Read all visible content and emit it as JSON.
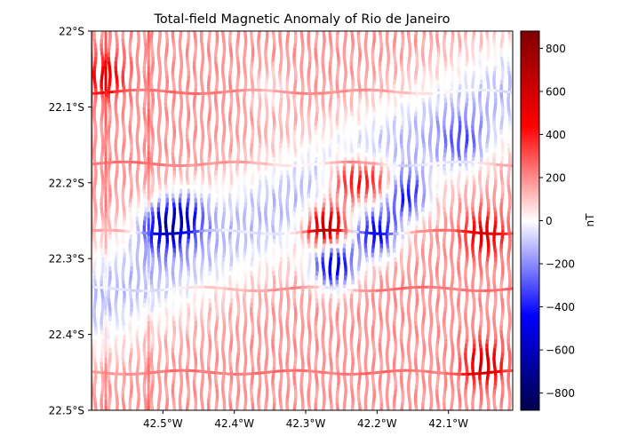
{
  "chart_data": {
    "type": "heatmap",
    "title": "Total-field Magnetic Anomaly of Rio de Janeiro",
    "xlabel": "",
    "ylabel": "",
    "xlim": [
      -42.6,
      -42.01
    ],
    "ylim": [
      -22.5,
      -22.0
    ],
    "x_ticks": [
      {
        "value": -42.5,
        "label": "42.5°W"
      },
      {
        "value": -42.4,
        "label": "42.4°W"
      },
      {
        "value": -42.3,
        "label": "42.3°W"
      },
      {
        "value": -42.2,
        "label": "42.2°W"
      },
      {
        "value": -42.1,
        "label": "42.1°W"
      }
    ],
    "y_ticks": [
      {
        "value": -22.0,
        "label": "22°S"
      },
      {
        "value": -22.1,
        "label": "22.1°S"
      },
      {
        "value": -22.2,
        "label": "22.2°S"
      },
      {
        "value": -22.3,
        "label": "22.3°S"
      },
      {
        "value": -22.4,
        "label": "22.4°S"
      },
      {
        "value": -22.5,
        "label": "22.5°S"
      }
    ],
    "colorbar": {
      "label": "nT",
      "colormap": "seismic",
      "vmin": -880,
      "vmax": 880,
      "ticks": [
        {
          "value": 800,
          "label": "800"
        },
        {
          "value": 600,
          "label": "600"
        },
        {
          "value": 400,
          "label": "400"
        },
        {
          "value": 200,
          "label": "200"
        },
        {
          "value": 0,
          "label": "0"
        },
        {
          "value": -200,
          "label": "−200"
        },
        {
          "value": -400,
          "label": "−400"
        },
        {
          "value": -600,
          "label": "−600"
        },
        {
          "value": -800,
          "label": "−800"
        }
      ]
    },
    "grid": false,
    "legend": "none",
    "survey": {
      "flight_line_spacing_deg": 0.01,
      "flight_line_direction": "north-south",
      "tie_lines_lat": [
        -22.08,
        -22.175,
        -22.265,
        -22.34,
        -22.45
      ],
      "tie_lines_lon": [
        -42.6,
        -42.58,
        -42.52
      ]
    },
    "anomalies": [
      {
        "type": "background",
        "value": 180
      },
      {
        "type": "low_band",
        "lon_start": -42.6,
        "lat_start": -22.36,
        "lon_end": -42.01,
        "lat_end": -22.08,
        "width_deg": 0.05,
        "value": -120
      },
      {
        "type": "low",
        "lon": -42.5,
        "lat": -22.26,
        "value": -520
      },
      {
        "type": "low",
        "lon": -42.47,
        "lat": -22.245,
        "value": -400
      },
      {
        "type": "low",
        "lon": -42.26,
        "lat": -22.31,
        "value": -700
      },
      {
        "type": "low",
        "lon": -42.2,
        "lat": -22.27,
        "value": -600
      },
      {
        "type": "low",
        "lon": -42.16,
        "lat": -22.22,
        "value": -480
      },
      {
        "type": "low",
        "lon": -42.08,
        "lat": -22.15,
        "value": -260
      },
      {
        "type": "low",
        "lon": -42.35,
        "lat": -22.08,
        "value": -120
      },
      {
        "type": "high",
        "lon": -42.27,
        "lat": -22.26,
        "value": 720
      },
      {
        "type": "high",
        "lon": -42.24,
        "lat": -22.2,
        "value": 450
      },
      {
        "type": "high",
        "lon": -42.2,
        "lat": -22.2,
        "value": 420
      },
      {
        "type": "high",
        "lon": -42.05,
        "lat": -22.27,
        "value": 380
      },
      {
        "type": "high",
        "lon": -42.05,
        "lat": -22.44,
        "value": 420
      },
      {
        "type": "high",
        "lon": -42.58,
        "lat": -22.06,
        "value": 330
      }
    ]
  },
  "colors": {
    "negative_extreme": "#00004c",
    "negative": "#0000ff",
    "zero": "#ffffff",
    "positive": "#ff0000",
    "positive_extreme": "#800000",
    "frame": "#000000"
  }
}
